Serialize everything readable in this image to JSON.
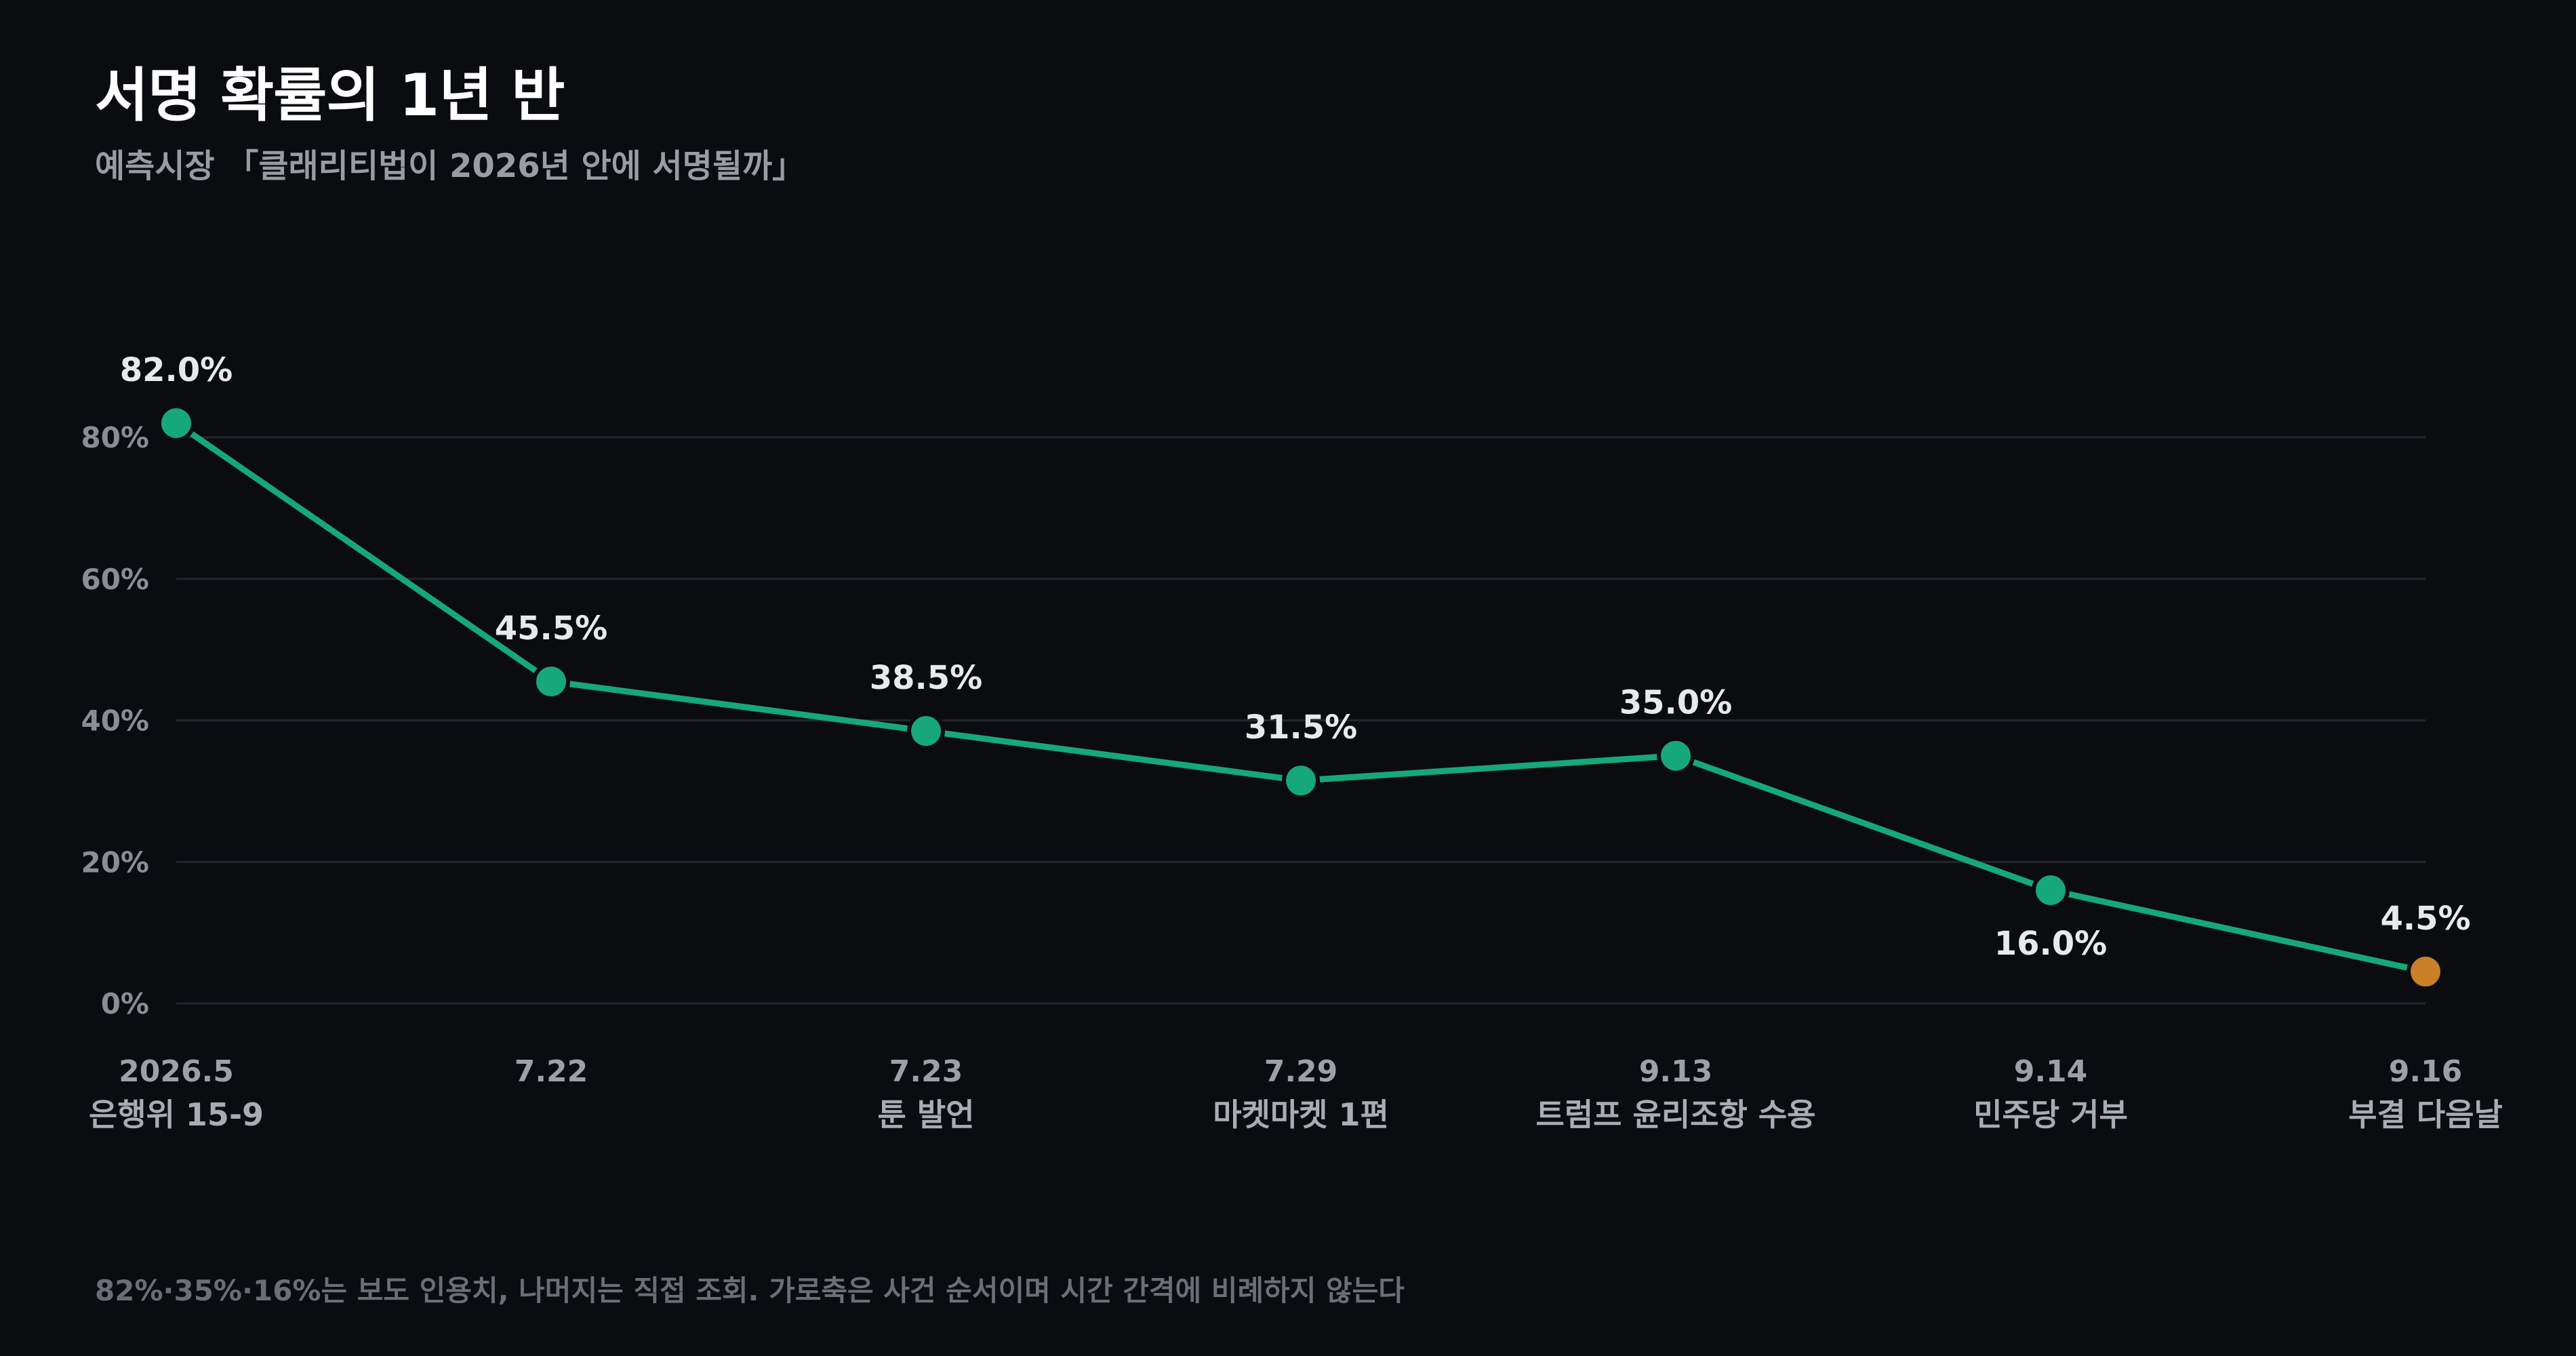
{
  "title": "서명 확률의 1년 반",
  "subtitle": "예측시장 「클래리티법이 2026년 안에 서명될까」",
  "footnote": "82%·35%·16%는 보도 인용치, 나머지는 직접 조회. 가로축은 사건 순서이며 시간 간격에 비례하지 않는다",
  "colors": {
    "background": "#0b0c10",
    "line": "#16a878",
    "point": "#16a878",
    "last_point": "#c98028",
    "grid": "#24262c"
  },
  "chart_data": {
    "type": "line",
    "x": [
      "2026.5",
      "7.22",
      "7.23",
      "7.29",
      "9.13",
      "9.14",
      "9.16"
    ],
    "x_sublabels": [
      "은행위 15-9",
      "",
      "툰 발언",
      "마켓마켓 1편",
      "트럼프 윤리조항 수용",
      "민주당 거부",
      "부결 다음날"
    ],
    "series": [
      {
        "values": [
          82.0,
          45.5,
          38.5,
          31.5,
          35.0,
          16.0,
          4.5
        ]
      }
    ],
    "data_labels": [
      "82.0%",
      "45.5%",
      "38.5%",
      "31.5%",
      "35.0%",
      "16.0%",
      "4.5%"
    ],
    "label_position": [
      "above",
      "above",
      "above",
      "above",
      "above",
      "below",
      "above"
    ],
    "highlight_last": true,
    "ylim": [
      0,
      80
    ],
    "yticks": [
      0,
      20,
      40,
      60,
      80
    ],
    "ytick_labels": [
      "0%",
      "20%",
      "40%",
      "60%",
      "80%"
    ],
    "grid": "horizontal",
    "xlabel": "",
    "ylabel": ""
  }
}
